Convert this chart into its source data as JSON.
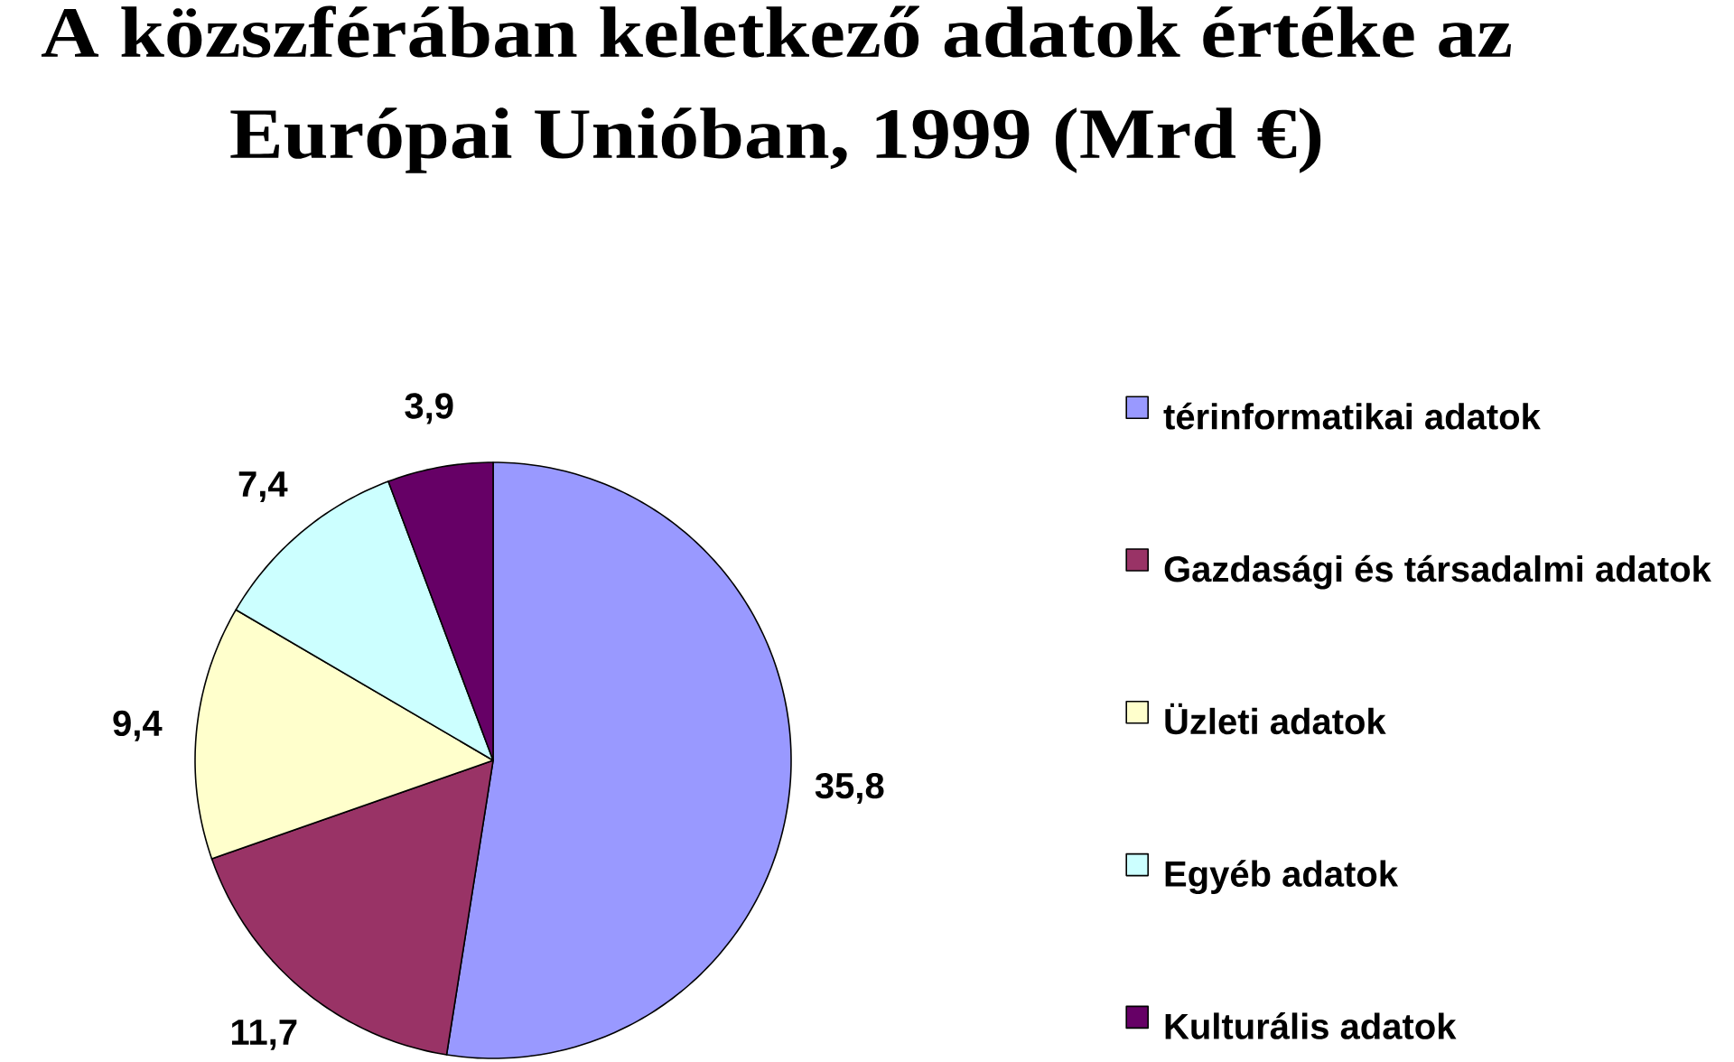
{
  "chart_data": {
    "type": "pie",
    "title": "A közszférában keletkező adatok értéke az Európai Unióban, 1999 (Mrd €)",
    "categories": [
      "térinformatikai adatok",
      "Gazdasági és társadalmi adatok",
      "Üzleti adatok",
      "Egyéb adatok",
      "Kulturális adatok"
    ],
    "values": [
      35.8,
      11.7,
      9.4,
      7.4,
      3.9
    ],
    "colors": [
      "#9999ff",
      "#993366",
      "#ffffcc",
      "#ccffff",
      "#660066"
    ],
    "value_labels": [
      "35,8",
      "11,7",
      "9,4",
      "7,4",
      "3,9"
    ],
    "legend": "right"
  }
}
